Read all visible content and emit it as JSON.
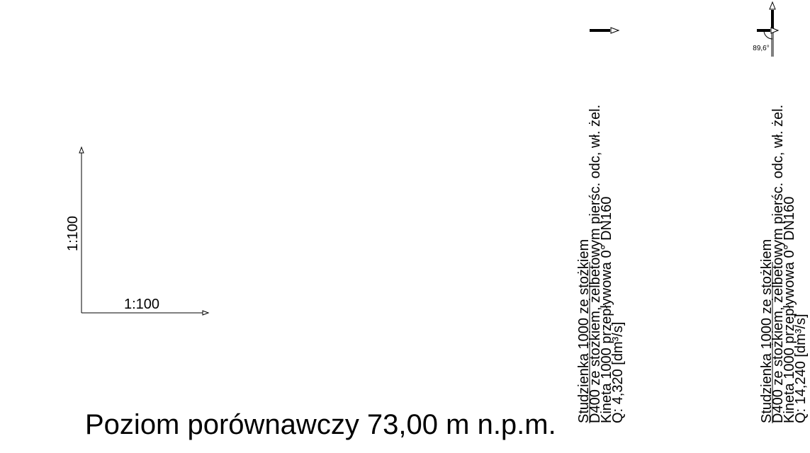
{
  "scale": {
    "x_label": "1:100",
    "y_label": "1:100"
  },
  "reference_level": "Poziom porównawczy 73,00 m n.p.m.",
  "wells": [
    {
      "lines": [
        "Studzienka 1000 ze stożkiem",
        "D400 ze stożkiem, żelbetowym pierśc. odc, wł. żel.",
        "Kineta 1000 przepływowa 0° DN160",
        "Q: 4,320 [dm³/s]"
      ],
      "angle_label": ""
    },
    {
      "lines": [
        "Studzienka 1000 ze stożkiem",
        "D400 ze stożkiem, żelbetowym pierśc. odc, wł. żel.",
        "Kineta 1000 przepływowa 0° DN160",
        "Q: 14,240 [dm³/s]"
      ],
      "angle_label": "89,6°"
    }
  ],
  "colors": {
    "line": "#000000",
    "inflow": "#808080"
  }
}
